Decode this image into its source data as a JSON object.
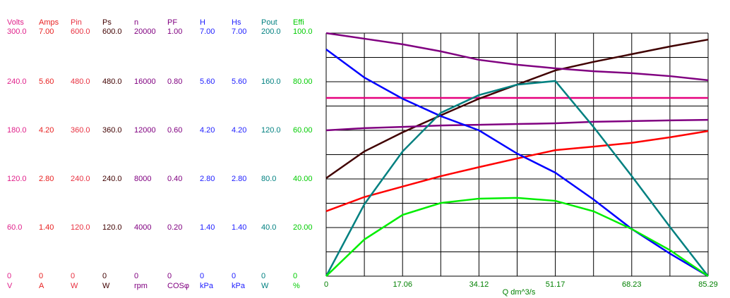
{
  "chart_data": {
    "type": "line",
    "xlabel": "Q  dm^3/s",
    "xlim": [
      0,
      85.29
    ],
    "xticks": [
      0,
      17.06,
      34.12,
      51.17,
      68.23,
      85.29
    ],
    "x": [
      0,
      8.53,
      17.06,
      25.59,
      34.12,
      42.65,
      51.17,
      59.7,
      68.23,
      76.76,
      85.29
    ],
    "axes": [
      {
        "name": "Volts",
        "unit": "V",
        "color": "#e0208a",
        "ylim": [
          0,
          300
        ],
        "ticks": [
          {
            "value": 300,
            "label": "300.0"
          },
          {
            "value": 240,
            "label": "240.0"
          },
          {
            "value": 180,
            "label": "180.0"
          },
          {
            "value": 120,
            "label": "120.0"
          },
          {
            "value": 60,
            "label": "60.0"
          },
          0
        ]
      },
      {
        "name": "Amps",
        "unit": "A",
        "color": "#e82020",
        "ylim": [
          0,
          7
        ],
        "ticks": [
          {
            "value": 7,
            "label": "7.00"
          },
          {
            "value": 5.6,
            "label": "5.60"
          },
          {
            "value": 4.2,
            "label": "4.20"
          },
          {
            "value": 2.8,
            "label": "2.80"
          },
          {
            "value": 1.4,
            "label": "1.40"
          },
          0
        ]
      },
      {
        "name": "Pin",
        "unit": "W",
        "color": "#e83040",
        "ylim": [
          0,
          600
        ],
        "ticks": [
          {
            "value": 600,
            "label": "600.0"
          },
          {
            "value": 480,
            "label": "480.0"
          },
          {
            "value": 360,
            "label": "360.0"
          },
          {
            "value": 240,
            "label": "240.0"
          },
          {
            "value": 120,
            "label": "120.0"
          },
          0
        ]
      },
      {
        "name": "Ps",
        "unit": "W",
        "color": "#400000",
        "ylim": [
          0,
          600
        ],
        "ticks": [
          {
            "value": 600,
            "label": "600.0"
          },
          {
            "value": 480,
            "label": "480.0"
          },
          {
            "value": 360,
            "label": "360.0"
          },
          {
            "value": 240,
            "label": "240.0"
          },
          {
            "value": 120,
            "label": "120.0"
          },
          0
        ]
      },
      {
        "name": "n",
        "unit": "rpm",
        "color": "#800080",
        "ylim": [
          0,
          20000
        ],
        "ticks": [
          20000,
          16000,
          12000,
          8000,
          4000,
          0
        ]
      },
      {
        "name": "PF",
        "unit": "COSφ",
        "color": "#800080",
        "ylim": [
          0,
          1
        ],
        "ticks": [
          {
            "value": 1,
            "label": "1.00"
          },
          {
            "value": 0.8,
            "label": "0.80"
          },
          {
            "value": 0.6,
            "label": "0.60"
          },
          {
            "value": 0.4,
            "label": "0.40"
          },
          {
            "value": 0.2,
            "label": "0.20"
          },
          0
        ]
      },
      {
        "name": "H",
        "unit": "kPa",
        "color": "#2020ff",
        "ylim": [
          0,
          7
        ],
        "ticks": [
          {
            "value": 7,
            "label": "7.00"
          },
          {
            "value": 5.6,
            "label": "5.60"
          },
          {
            "value": 4.2,
            "label": "4.20"
          },
          {
            "value": 2.8,
            "label": "2.80"
          },
          {
            "value": 1.4,
            "label": "1.40"
          },
          0
        ]
      },
      {
        "name": "Hs",
        "unit": "kPa",
        "color": "#2020ff",
        "ylim": [
          0,
          7
        ],
        "ticks": [
          {
            "value": 7,
            "label": "7.00"
          },
          {
            "value": 5.6,
            "label": "5.60"
          },
          {
            "value": 4.2,
            "label": "4.20"
          },
          {
            "value": 2.8,
            "label": "2.80"
          },
          {
            "value": 1.4,
            "label": "1.40"
          },
          0
        ]
      },
      {
        "name": "Pout",
        "unit": "W",
        "color": "#008080",
        "ylim": [
          0,
          200
        ],
        "ticks": [
          {
            "value": 200,
            "label": "200.0"
          },
          {
            "value": 160,
            "label": "160.0"
          },
          {
            "value": 120,
            "label": "120.0"
          },
          {
            "value": 80,
            "label": "80.0"
          },
          {
            "value": 40,
            "label": "40.0"
          },
          0
        ]
      },
      {
        "name": "Effi",
        "unit": "%",
        "color": "#00cc00",
        "ylim": [
          0,
          100
        ],
        "ticks": [
          {
            "value": 100,
            "label": "100.0"
          },
          {
            "value": 80,
            "label": "80.00"
          },
          {
            "value": 60,
            "label": "60.00"
          },
          {
            "value": 40,
            "label": "40.00"
          },
          {
            "value": 20,
            "label": "20.00"
          },
          0
        ]
      }
    ],
    "series": [
      {
        "axis": 0,
        "color": "#e6007e",
        "values": [
          220,
          220,
          220,
          220,
          220,
          220,
          220,
          220,
          220,
          220,
          220
        ]
      },
      {
        "axis": 1,
        "color": "#ff0000",
        "values": [
          1.87,
          2.28,
          2.58,
          2.88,
          3.14,
          3.39,
          3.63,
          3.73,
          3.84,
          4.0,
          4.18
        ]
      },
      {
        "axis": 3,
        "color": "#400000",
        "values": [
          242,
          308,
          355,
          397,
          438,
          473,
          508,
          529,
          548,
          567,
          584
        ]
      },
      {
        "axis": 4,
        "color": "#800080",
        "values": [
          20000,
          19540,
          19080,
          18500,
          17800,
          17400,
          17100,
          16860,
          16700,
          16460,
          16120
        ]
      },
      {
        "axis": 5,
        "color": "#800080",
        "values": [
          0.6,
          0.609,
          0.614,
          0.62,
          0.623,
          0.626,
          0.629,
          0.635,
          0.638,
          0.641,
          0.643
        ]
      },
      {
        "axis": 6,
        "color": "#0000ff",
        "values": [
          6.53,
          5.72,
          5.11,
          4.61,
          4.2,
          3.53,
          2.98,
          2.21,
          1.36,
          0.65,
          0
        ]
      },
      {
        "axis": 8,
        "color": "#008080",
        "values": [
          0,
          59.2,
          102.6,
          134.4,
          149.0,
          157.6,
          160.6,
          122.8,
          82.4,
          40.6,
          0
        ]
      },
      {
        "axis": 9,
        "color": "#00ee00",
        "values": [
          0,
          15.1,
          25.2,
          30.1,
          31.9,
          32.2,
          31.0,
          26.7,
          19.4,
          10.7,
          0
        ]
      }
    ]
  }
}
